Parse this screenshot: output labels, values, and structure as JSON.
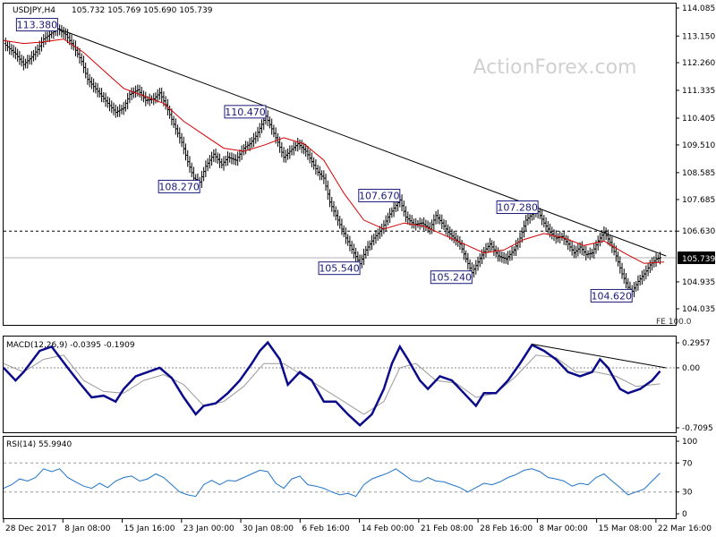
{
  "header": {
    "symbol": "USDJPY,H4",
    "ohlc": "105.732 105.769 105.690 105.739"
  },
  "watermark": "ActionForex.com",
  "chart_data": [
    {
      "type": "candlestick",
      "name": "price",
      "ylim": [
        104.035,
        114.085
      ],
      "y_ticks": [
        "114.085",
        "113.150",
        "112.260",
        "111.335",
        "110.405",
        "109.510",
        "108.585",
        "107.685",
        "106.630",
        "105.739",
        "104.935",
        "104.035"
      ],
      "current_value": "105.739",
      "x_ticks": [
        "28 Dec 2017",
        "8 Jan 08:00",
        "15 Jan 16:00",
        "23 Jan 00:00",
        "30 Jan 08:00",
        "6 Feb 16:00",
        "14 Feb 00:00",
        "21 Feb 08:00",
        "28 Feb 16:00",
        "8 Mar 00:00",
        "15 Mar 08:00",
        "22 Mar 16:00"
      ],
      "x_range": [
        0,
        330
      ],
      "close_path": [
        [
          0,
          112.9
        ],
        [
          6,
          112.55
        ],
        [
          10,
          112.2
        ],
        [
          14,
          112.45
        ],
        [
          17,
          112.7
        ],
        [
          20,
          113.05
        ],
        [
          24,
          113.25
        ],
        [
          27,
          113.38
        ],
        [
          31,
          113.2
        ],
        [
          35,
          112.8
        ],
        [
          39,
          112.3
        ],
        [
          42,
          111.7
        ],
        [
          47,
          111.3
        ],
        [
          52,
          110.9
        ],
        [
          56,
          110.6
        ],
        [
          60,
          110.75
        ],
        [
          63,
          111.2
        ],
        [
          67,
          111.35
        ],
        [
          71,
          111.0
        ],
        [
          75,
          111.05
        ],
        [
          78,
          111.25
        ],
        [
          81,
          110.85
        ],
        [
          85,
          110.2
        ],
        [
          89,
          109.6
        ],
        [
          92,
          108.95
        ],
        [
          95,
          108.4
        ],
        [
          98,
          108.27
        ],
        [
          101,
          108.8
        ],
        [
          105,
          109.2
        ],
        [
          109,
          108.85
        ],
        [
          112,
          109.1
        ],
        [
          116,
          109.0
        ],
        [
          120,
          109.4
        ],
        [
          123,
          109.55
        ],
        [
          126,
          109.8
        ],
        [
          129,
          110.2
        ],
        [
          131,
          110.47
        ],
        [
          134,
          110.05
        ],
        [
          137,
          109.6
        ],
        [
          140,
          109.1
        ],
        [
          143,
          109.3
        ],
        [
          147,
          109.55
        ],
        [
          151,
          109.3
        ],
        [
          154,
          108.95
        ],
        [
          157,
          108.6
        ],
        [
          160,
          108.4
        ],
        [
          163,
          107.6
        ],
        [
          167,
          107.0
        ],
        [
          171,
          106.4
        ],
        [
          175,
          105.9
        ],
        [
          178,
          105.54
        ],
        [
          181,
          106.0
        ],
        [
          185,
          106.4
        ],
        [
          189,
          106.7
        ],
        [
          192,
          107.1
        ],
        [
          195,
          107.4
        ],
        [
          198,
          107.67
        ],
        [
          201,
          107.1
        ],
        [
          205,
          106.85
        ],
        [
          209,
          106.9
        ],
        [
          213,
          106.7
        ],
        [
          216,
          107.15
        ],
        [
          219,
          106.9
        ],
        [
          222,
          106.6
        ],
        [
          225,
          106.4
        ],
        [
          228,
          106.2
        ],
        [
          231,
          105.7
        ],
        [
          234,
          105.24
        ],
        [
          237,
          105.6
        ],
        [
          240,
          105.95
        ],
        [
          243,
          106.2
        ],
        [
          247,
          105.8
        ],
        [
          251,
          105.7
        ],
        [
          255,
          106.0
        ],
        [
          258,
          106.4
        ],
        [
          261,
          107.0
        ],
        [
          264,
          107.2
        ],
        [
          267,
          107.28
        ],
        [
          270,
          106.9
        ],
        [
          273,
          106.6
        ],
        [
          276,
          106.4
        ],
        [
          279,
          106.45
        ],
        [
          282,
          106.2
        ],
        [
          285,
          105.9
        ],
        [
          288,
          106.1
        ],
        [
          291,
          105.85
        ],
        [
          294,
          105.9
        ],
        [
          297,
          106.3
        ],
        [
          300,
          106.6
        ],
        [
          303,
          106.25
        ],
        [
          306,
          105.8
        ],
        [
          309,
          105.2
        ],
        [
          312,
          104.75
        ],
        [
          314,
          104.62
        ],
        [
          317,
          104.95
        ],
        [
          320,
          105.2
        ],
        [
          323,
          105.5
        ],
        [
          326,
          105.7
        ],
        [
          328,
          105.74
        ]
      ],
      "moving_average": [
        [
          0,
          113.0
        ],
        [
          10,
          112.9
        ],
        [
          20,
          112.95
        ],
        [
          30,
          113.05
        ],
        [
          40,
          112.6
        ],
        [
          50,
          112.0
        ],
        [
          60,
          111.4
        ],
        [
          70,
          111.15
        ],
        [
          80,
          110.9
        ],
        [
          90,
          110.3
        ],
        [
          100,
          109.85
        ],
        [
          110,
          109.4
        ],
        [
          120,
          109.3
        ],
        [
          130,
          109.5
        ],
        [
          140,
          109.75
        ],
        [
          150,
          109.55
        ],
        [
          160,
          109.0
        ],
        [
          170,
          107.9
        ],
        [
          180,
          107.0
        ],
        [
          190,
          106.7
        ],
        [
          200,
          106.9
        ],
        [
          210,
          106.8
        ],
        [
          220,
          106.5
        ],
        [
          230,
          106.2
        ],
        [
          240,
          105.9
        ],
        [
          250,
          106.0
        ],
        [
          260,
          106.35
        ],
        [
          270,
          106.55
        ],
        [
          280,
          106.4
        ],
        [
          290,
          106.15
        ],
        [
          300,
          106.3
        ],
        [
          310,
          105.9
        ],
        [
          320,
          105.55
        ],
        [
          330,
          105.6
        ]
      ],
      "trendline": [
        [
          25,
          113.45
        ],
        [
          331,
          105.8
        ]
      ],
      "support_level": "106.630",
      "annotations": [
        {
          "label": "113.380",
          "x": 27,
          "y": 113.38
        },
        {
          "label": "110.470",
          "x": 131,
          "y": 110.47
        },
        {
          "label": "108.270",
          "x": 98,
          "y": 108.27
        },
        {
          "label": "107.670",
          "x": 198,
          "y": 107.67
        },
        {
          "label": "107.280",
          "x": 267,
          "y": 107.28
        },
        {
          "label": "105.540",
          "x": 178,
          "y": 105.54
        },
        {
          "label": "105.240",
          "x": 234,
          "y": 105.24
        },
        {
          "label": "104.620",
          "x": 314,
          "y": 104.62
        }
      ],
      "fib_label": "FE 100.0"
    },
    {
      "type": "line",
      "name": "MACD",
      "header": "MACD(12,26,9) -0.0395 -0.1909",
      "ylim": [
        -0.7095,
        0.2957
      ],
      "y_ticks": [
        "0.2957",
        "0.00",
        "-0.7095"
      ],
      "macd": [
        [
          0,
          0.0
        ],
        [
          6,
          -0.15
        ],
        [
          10,
          -0.05
        ],
        [
          18,
          0.2
        ],
        [
          24,
          0.25
        ],
        [
          32,
          0.0
        ],
        [
          38,
          -0.18
        ],
        [
          44,
          -0.35
        ],
        [
          50,
          -0.33
        ],
        [
          56,
          -0.4
        ],
        [
          60,
          -0.25
        ],
        [
          66,
          -0.1
        ],
        [
          72,
          -0.05
        ],
        [
          78,
          0.0
        ],
        [
          84,
          -0.12
        ],
        [
          90,
          -0.35
        ],
        [
          96,
          -0.55
        ],
        [
          100,
          -0.45
        ],
        [
          106,
          -0.42
        ],
        [
          112,
          -0.3
        ],
        [
          118,
          -0.15
        ],
        [
          124,
          0.05
        ],
        [
          128,
          0.2
        ],
        [
          132,
          0.3
        ],
        [
          138,
          0.1
        ],
        [
          142,
          -0.2
        ],
        [
          148,
          -0.05
        ],
        [
          154,
          -0.15
        ],
        [
          160,
          -0.4
        ],
        [
          166,
          -0.4
        ],
        [
          172,
          -0.55
        ],
        [
          178,
          -0.68
        ],
        [
          184,
          -0.55
        ],
        [
          190,
          -0.25
        ],
        [
          194,
          0.05
        ],
        [
          198,
          0.25
        ],
        [
          202,
          0.1
        ],
        [
          208,
          -0.15
        ],
        [
          212,
          -0.25
        ],
        [
          218,
          -0.1
        ],
        [
          224,
          -0.15
        ],
        [
          230,
          -0.3
        ],
        [
          236,
          -0.45
        ],
        [
          240,
          -0.3
        ],
        [
          246,
          -0.3
        ],
        [
          252,
          -0.15
        ],
        [
          258,
          0.05
        ],
        [
          264,
          0.27
        ],
        [
          270,
          0.2
        ],
        [
          276,
          0.1
        ],
        [
          282,
          -0.05
        ],
        [
          288,
          -0.1
        ],
        [
          294,
          -0.05
        ],
        [
          298,
          0.1
        ],
        [
          302,
          0.0
        ],
        [
          308,
          -0.25
        ],
        [
          312,
          -0.3
        ],
        [
          318,
          -0.25
        ],
        [
          324,
          -0.15
        ],
        [
          328,
          -0.04
        ]
      ],
      "signal": [
        [
          0,
          0.05
        ],
        [
          10,
          -0.05
        ],
        [
          20,
          0.1
        ],
        [
          30,
          0.15
        ],
        [
          40,
          -0.15
        ],
        [
          50,
          -0.28
        ],
        [
          60,
          -0.3
        ],
        [
          70,
          -0.15
        ],
        [
          80,
          -0.08
        ],
        [
          90,
          -0.2
        ],
        [
          100,
          -0.45
        ],
        [
          110,
          -0.4
        ],
        [
          120,
          -0.22
        ],
        [
          130,
          0.05
        ],
        [
          140,
          0.05
        ],
        [
          150,
          -0.1
        ],
        [
          160,
          -0.25
        ],
        [
          170,
          -0.4
        ],
        [
          180,
          -0.55
        ],
        [
          190,
          -0.4
        ],
        [
          198,
          0.0
        ],
        [
          206,
          0.05
        ],
        [
          216,
          -0.15
        ],
        [
          226,
          -0.18
        ],
        [
          236,
          -0.35
        ],
        [
          246,
          -0.3
        ],
        [
          256,
          -0.1
        ],
        [
          266,
          0.15
        ],
        [
          276,
          0.12
        ],
        [
          286,
          -0.05
        ],
        [
          296,
          -0.05
        ],
        [
          306,
          -0.1
        ],
        [
          316,
          -0.22
        ],
        [
          328,
          -0.19
        ]
      ],
      "trendline": [
        [
          264,
          0.28
        ],
        [
          331,
          0.0
        ]
      ]
    },
    {
      "type": "line",
      "name": "RSI",
      "header": "RSI(14) 55.9940",
      "ylim": [
        0,
        100
      ],
      "y_ticks": [
        "100",
        "70",
        "30",
        "0"
      ],
      "levels": [
        70,
        30
      ],
      "values": [
        [
          0,
          35
        ],
        [
          4,
          40
        ],
        [
          8,
          48
        ],
        [
          12,
          45
        ],
        [
          16,
          50
        ],
        [
          20,
          62
        ],
        [
          24,
          58
        ],
        [
          28,
          62
        ],
        [
          32,
          50
        ],
        [
          36,
          44
        ],
        [
          40,
          38
        ],
        [
          44,
          35
        ],
        [
          48,
          42
        ],
        [
          52,
          36
        ],
        [
          56,
          45
        ],
        [
          60,
          50
        ],
        [
          64,
          52
        ],
        [
          68,
          45
        ],
        [
          72,
          48
        ],
        [
          76,
          55
        ],
        [
          80,
          50
        ],
        [
          84,
          40
        ],
        [
          88,
          30
        ],
        [
          92,
          26
        ],
        [
          96,
          24
        ],
        [
          100,
          40
        ],
        [
          104,
          46
        ],
        [
          108,
          40
        ],
        [
          112,
          46
        ],
        [
          116,
          45
        ],
        [
          120,
          50
        ],
        [
          124,
          55
        ],
        [
          128,
          60
        ],
        [
          132,
          58
        ],
        [
          136,
          42
        ],
        [
          140,
          35
        ],
        [
          144,
          48
        ],
        [
          148,
          52
        ],
        [
          152,
          40
        ],
        [
          156,
          38
        ],
        [
          160,
          35
        ],
        [
          164,
          30
        ],
        [
          168,
          26
        ],
        [
          172,
          28
        ],
        [
          176,
          24
        ],
        [
          180,
          40
        ],
        [
          184,
          48
        ],
        [
          188,
          52
        ],
        [
          192,
          56
        ],
        [
          196,
          62
        ],
        [
          200,
          54
        ],
        [
          204,
          46
        ],
        [
          208,
          44
        ],
        [
          212,
          50
        ],
        [
          216,
          45
        ],
        [
          220,
          44
        ],
        [
          224,
          40
        ],
        [
          228,
          36
        ],
        [
          232,
          30
        ],
        [
          236,
          36
        ],
        [
          240,
          42
        ],
        [
          244,
          40
        ],
        [
          248,
          44
        ],
        [
          252,
          50
        ],
        [
          256,
          54
        ],
        [
          260,
          60
        ],
        [
          264,
          62
        ],
        [
          268,
          58
        ],
        [
          272,
          50
        ],
        [
          276,
          48
        ],
        [
          280,
          45
        ],
        [
          284,
          38
        ],
        [
          288,
          42
        ],
        [
          292,
          40
        ],
        [
          296,
          50
        ],
        [
          300,
          55
        ],
        [
          304,
          45
        ],
        [
          308,
          36
        ],
        [
          312,
          26
        ],
        [
          316,
          30
        ],
        [
          320,
          34
        ],
        [
          324,
          45
        ],
        [
          328,
          56
        ]
      ]
    }
  ]
}
